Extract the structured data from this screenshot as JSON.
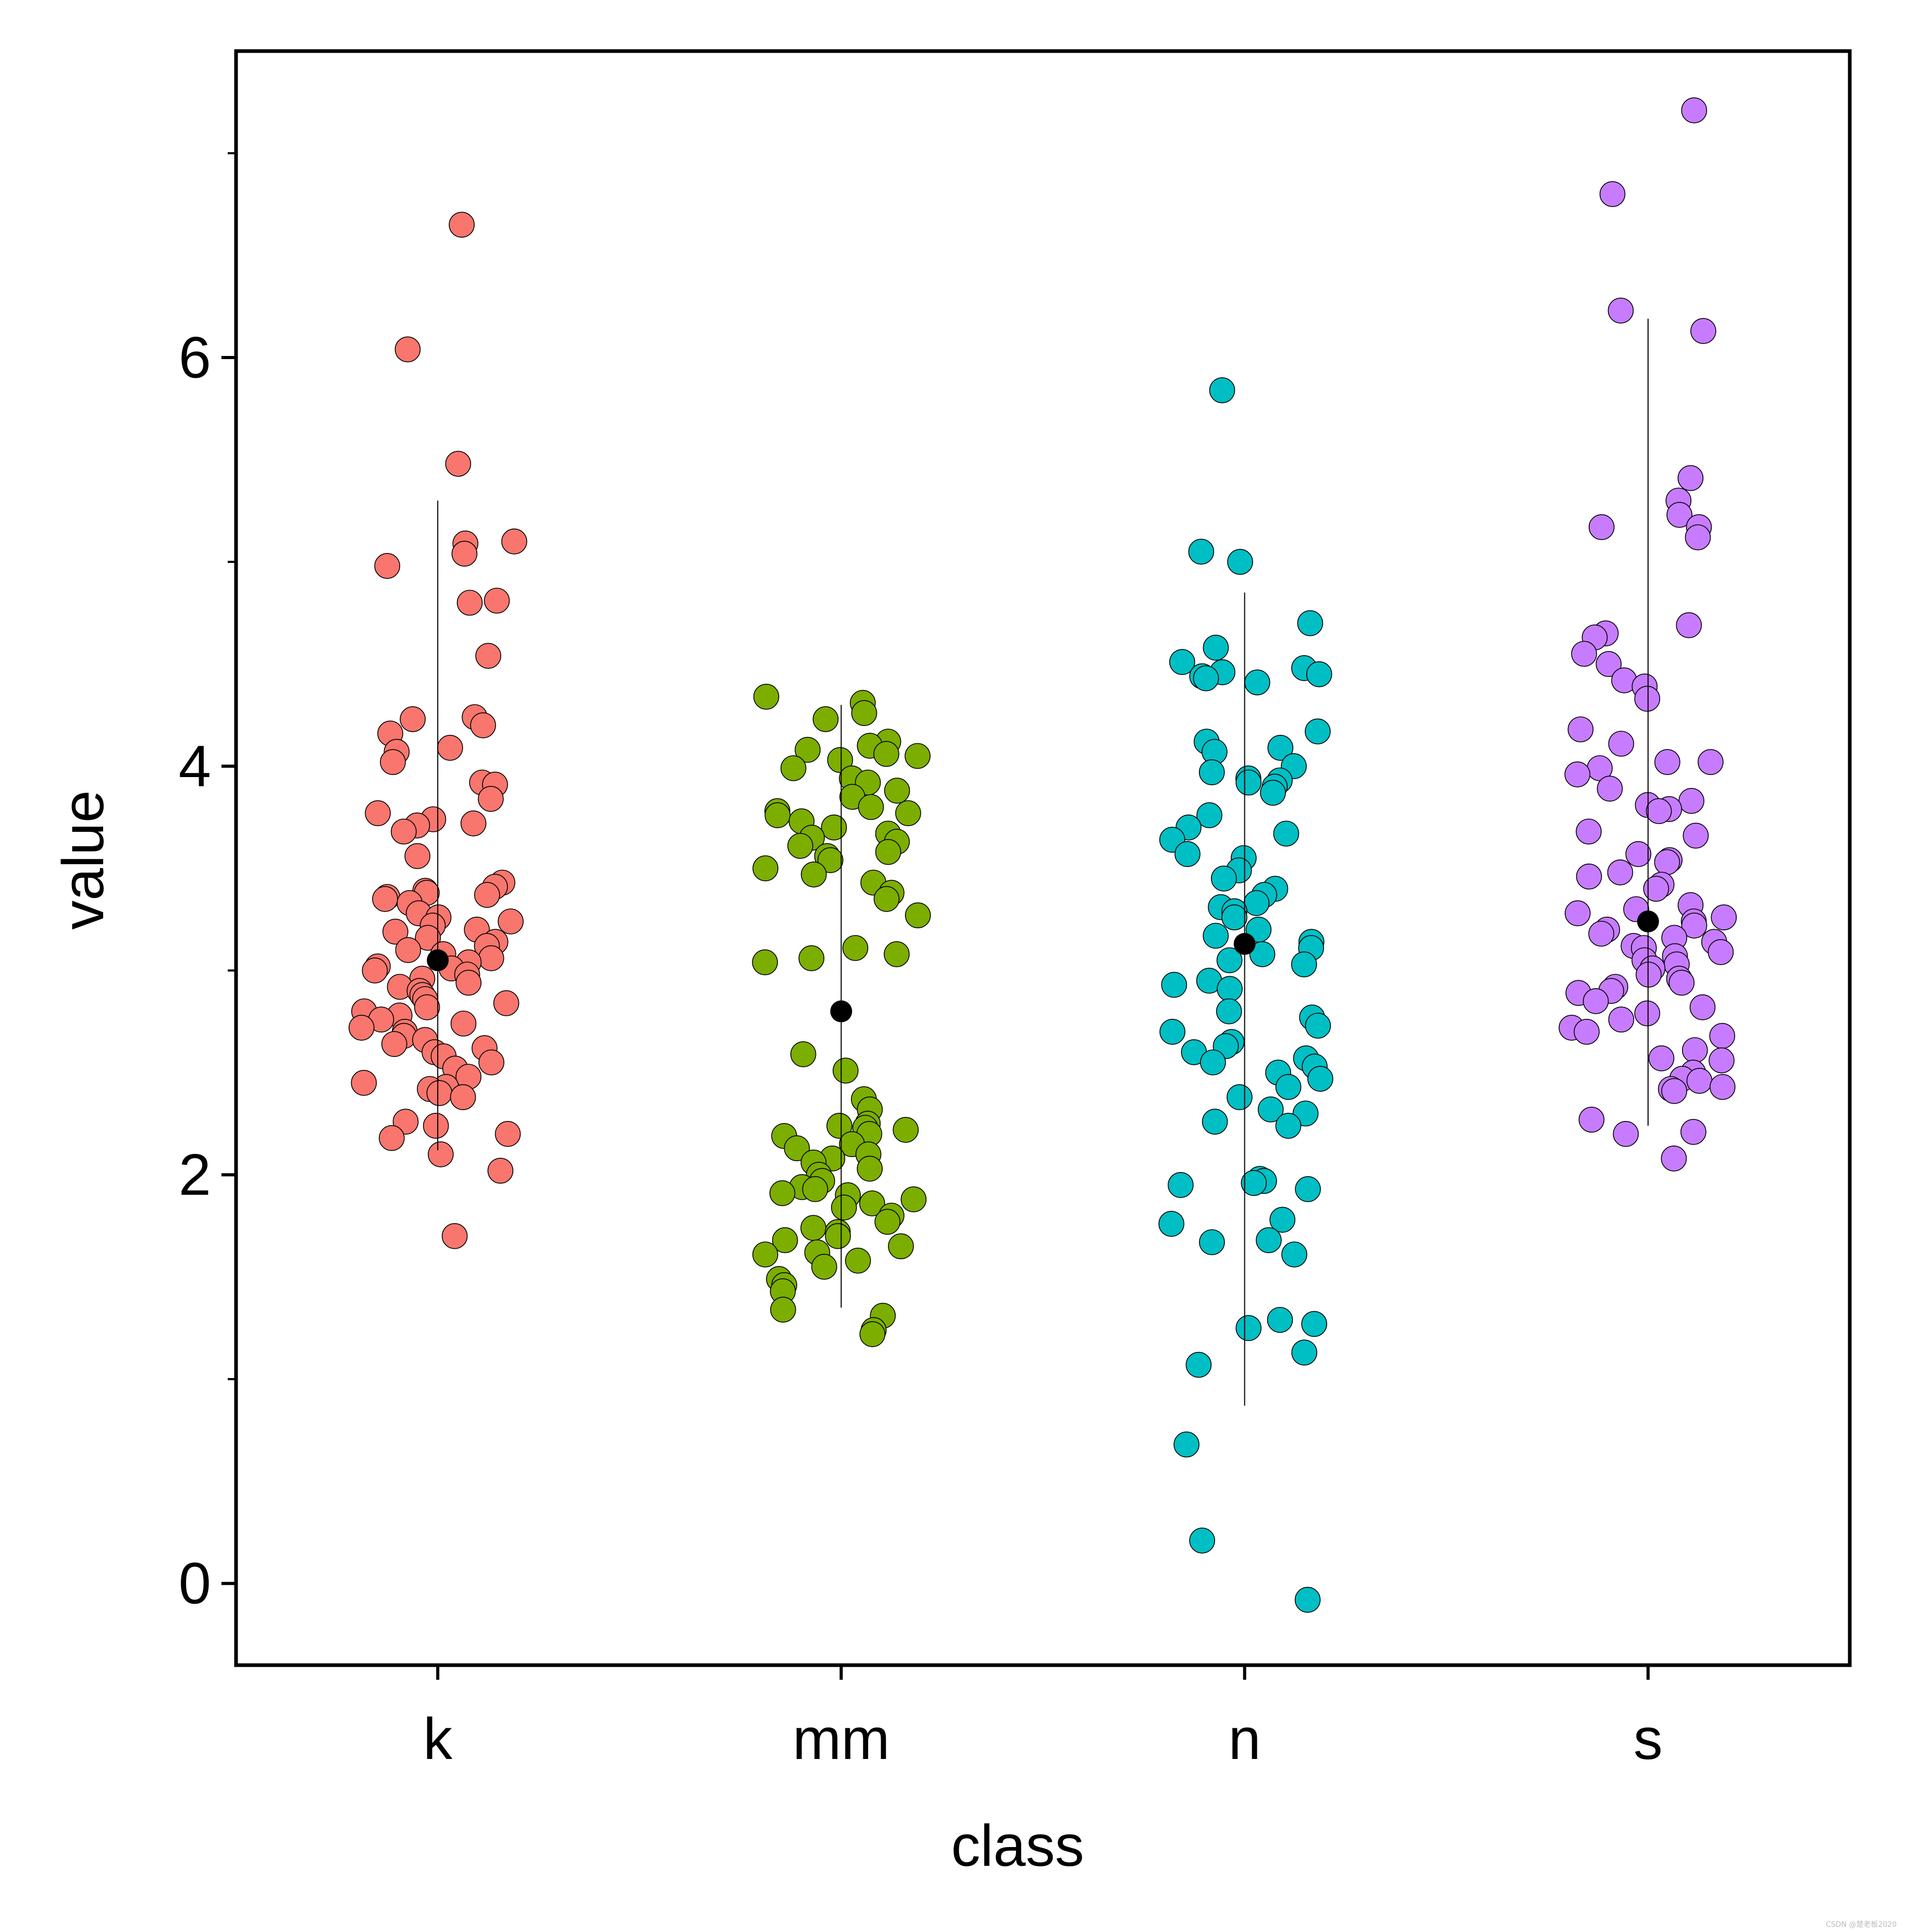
{
  "chart_data": {
    "type": "scatter",
    "title": "",
    "xlabel": "class",
    "ylabel": "value",
    "categories": [
      "k",
      "mm",
      "n",
      "s"
    ],
    "ylim": [
      -0.4,
      7.5
    ],
    "yticks": [
      0,
      2,
      4,
      6
    ],
    "minor_yticks": [
      1,
      3,
      5,
      7
    ],
    "grid": false,
    "legend": "none",
    "series": [
      {
        "category": "k",
        "color": "#F8766D",
        "mean": 3.05,
        "ci": [
          2.12,
          5.3
        ],
        "points": [
          6.65,
          6.04,
          5.48,
          5.1,
          5.09,
          5.04,
          4.98,
          4.81,
          4.8,
          4.54,
          4.24,
          4.23,
          4.2,
          4.16,
          4.09,
          4.07,
          4.02,
          3.92,
          3.91,
          3.84,
          3.77,
          3.74,
          3.72,
          3.71,
          3.68,
          3.56,
          3.43,
          3.41,
          3.39,
          3.38,
          3.37,
          3.36,
          3.35,
          3.33,
          3.28,
          3.26,
          3.24,
          3.22,
          3.2,
          3.19,
          3.16,
          3.14,
          3.12,
          3.1,
          3.08,
          3.06,
          3.04,
          3.02,
          3.01,
          3.0,
          2.98,
          2.96,
          2.94,
          2.92,
          2.9,
          2.88,
          2.86,
          2.84,
          2.82,
          2.8,
          2.78,
          2.76,
          2.74,
          2.72,
          2.7,
          2.68,
          2.66,
          2.64,
          2.62,
          2.6,
          2.58,
          2.55,
          2.52,
          2.48,
          2.45,
          2.43,
          2.42,
          2.4,
          2.38,
          2.26,
          2.24,
          2.2,
          2.18,
          2.1,
          2.02,
          1.7
        ]
      },
      {
        "category": "mm",
        "color": "#7CAE00",
        "mean": 2.8,
        "ci": [
          1.35,
          4.3
        ],
        "points": [
          4.34,
          4.31,
          4.26,
          4.23,
          4.12,
          4.1,
          4.08,
          4.06,
          4.05,
          4.03,
          3.99,
          3.94,
          3.92,
          3.88,
          3.85,
          3.8,
          3.78,
          3.77,
          3.76,
          3.73,
          3.7,
          3.67,
          3.65,
          3.63,
          3.61,
          3.58,
          3.56,
          3.54,
          3.5,
          3.47,
          3.43,
          3.38,
          3.35,
          3.27,
          3.11,
          3.08,
          3.06,
          3.04,
          2.59,
          2.51,
          2.37,
          2.32,
          2.25,
          2.24,
          2.23,
          2.22,
          2.2,
          2.19,
          2.15,
          2.13,
          2.1,
          2.08,
          2.06,
          2.03,
          2.0,
          1.97,
          1.94,
          1.93,
          1.91,
          1.9,
          1.88,
          1.86,
          1.84,
          1.8,
          1.77,
          1.74,
          1.72,
          1.7,
          1.68,
          1.65,
          1.62,
          1.61,
          1.58,
          1.55,
          1.49,
          1.46,
          1.43,
          1.34,
          1.31,
          1.24,
          1.22
        ]
      },
      {
        "category": "n",
        "color": "#00BFC4",
        "mean": 3.13,
        "ci": [
          0.87,
          4.85
        ],
        "points": [
          5.84,
          5.05,
          5.0,
          4.7,
          4.58,
          4.51,
          4.48,
          4.46,
          4.45,
          4.44,
          4.43,
          4.41,
          4.17,
          4.12,
          4.09,
          4.07,
          4.0,
          3.97,
          3.94,
          3.93,
          3.92,
          3.9,
          3.87,
          3.76,
          3.7,
          3.67,
          3.64,
          3.57,
          3.55,
          3.49,
          3.45,
          3.4,
          3.37,
          3.33,
          3.31,
          3.29,
          3.26,
          3.2,
          3.17,
          3.14,
          3.11,
          3.08,
          3.05,
          3.03,
          2.95,
          2.93,
          2.91,
          2.8,
          2.77,
          2.73,
          2.7,
          2.65,
          2.63,
          2.6,
          2.57,
          2.55,
          2.53,
          2.5,
          2.47,
          2.43,
          2.38,
          2.32,
          2.3,
          2.26,
          2.24,
          1.98,
          1.97,
          1.96,
          1.95,
          1.93,
          1.78,
          1.76,
          1.68,
          1.67,
          1.61,
          1.29,
          1.27,
          1.25,
          1.13,
          1.07,
          0.68,
          0.21,
          -0.08
        ]
      },
      {
        "category": "s",
        "color": "#C77CFF",
        "mean": 3.24,
        "ci": [
          2.24,
          6.19
        ],
        "points": [
          7.21,
          6.8,
          6.23,
          6.13,
          5.41,
          5.3,
          5.23,
          5.17,
          5.17,
          5.12,
          4.69,
          4.65,
          4.63,
          4.55,
          4.5,
          4.42,
          4.39,
          4.33,
          4.18,
          4.11,
          4.02,
          4.02,
          3.99,
          3.96,
          3.89,
          3.83,
          3.81,
          3.79,
          3.78,
          3.68,
          3.66,
          3.57,
          3.54,
          3.53,
          3.48,
          3.46,
          3.42,
          3.4,
          3.32,
          3.3,
          3.28,
          3.26,
          3.24,
          3.22,
          3.2,
          3.18,
          3.16,
          3.14,
          3.12,
          3.11,
          3.09,
          3.07,
          3.05,
          3.03,
          3.01,
          2.98,
          2.96,
          2.94,
          2.92,
          2.9,
          2.89,
          2.85,
          2.82,
          2.79,
          2.76,
          2.72,
          2.7,
          2.68,
          2.61,
          2.57,
          2.56,
          2.5,
          2.47,
          2.46,
          2.43,
          2.42,
          2.41,
          2.27,
          2.21,
          2.2,
          2.08
        ]
      }
    ]
  },
  "watermark": "CSDN @楚老板2020"
}
